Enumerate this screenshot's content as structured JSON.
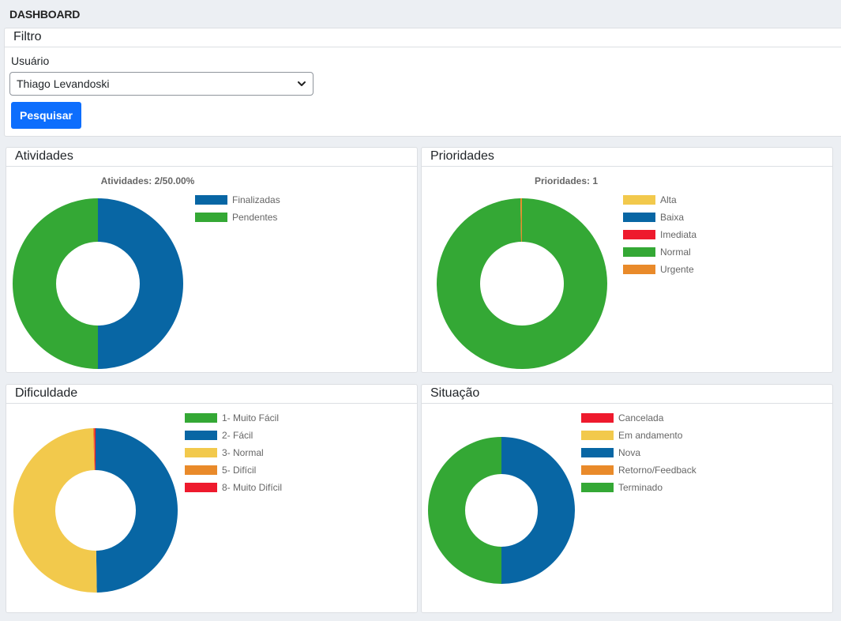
{
  "page_title": "DASHBOARD",
  "filter": {
    "header": "Filtro",
    "user_label": "Usuário",
    "user_value": "Thiago Levandoski",
    "search_button": "Pesquisar"
  },
  "colors": {
    "blue": "#0866a4",
    "green": "#34a835",
    "yellow": "#f2c94c",
    "red": "#ee1a2d",
    "orange": "#e98a2a",
    "primary_button": "#0d6efd"
  },
  "charts": [
    {
      "header": "Atividades",
      "chart_data": {
        "type": "doughnut",
        "title": "Atividades: 2/50.00%",
        "legend_position": "right",
        "labels": [
          "Finalizadas",
          "Pendentes"
        ],
        "values": [
          1,
          1
        ],
        "colors": [
          "#0866a4",
          "#34a835"
        ]
      }
    },
    {
      "header": "Prioridades",
      "chart_data": {
        "type": "doughnut",
        "title": "Prioridades: 1",
        "legend_position": "right",
        "labels": [
          "Alta",
          "Baixa",
          "Imediata",
          "Normal",
          "Urgente"
        ],
        "values": [
          0,
          0,
          0,
          1,
          0.003
        ],
        "colors": [
          "#f2c94c",
          "#0866a4",
          "#ee1a2d",
          "#34a835",
          "#e98a2a"
        ]
      }
    },
    {
      "header": "Dificuldade",
      "chart_data": {
        "type": "doughnut",
        "title": "",
        "legend_position": "right",
        "labels": [
          "1- Muito Fácil",
          "2- Fácil",
          "3- Normal",
          "5- Difícil",
          "8- Muito Difícil"
        ],
        "values": [
          0,
          1,
          1,
          0.005,
          0.005
        ],
        "colors": [
          "#34a835",
          "#0866a4",
          "#f2c94c",
          "#e98a2a",
          "#ee1a2d"
        ]
      }
    },
    {
      "header": "Situação",
      "chart_data": {
        "type": "doughnut",
        "title": "",
        "legend_position": "right",
        "labels": [
          "Cancelada",
          "Em andamento",
          "Nova",
          "Retorno/Feedback",
          "Terminado"
        ],
        "values": [
          0,
          0,
          1,
          0,
          1
        ],
        "colors": [
          "#ee1a2d",
          "#f2c94c",
          "#0866a4",
          "#e98a2a",
          "#34a835"
        ]
      }
    }
  ]
}
